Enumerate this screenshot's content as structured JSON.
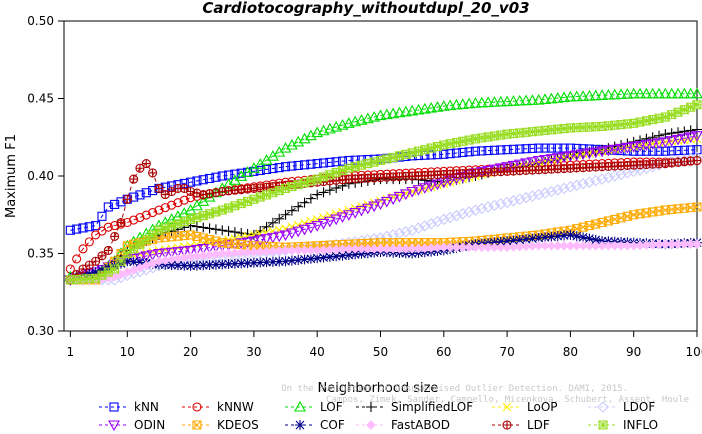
{
  "chart_data": {
    "type": "line",
    "title": "Cardiotocography_withoutdupl_20_v03",
    "xlabel": "Neighborhood size",
    "ylabel": "Maximum F1",
    "xlim": [
      0,
      100
    ],
    "ylim": [
      0.3,
      0.5
    ],
    "xticks": [
      1,
      10,
      20,
      30,
      40,
      50,
      60,
      70,
      80,
      90,
      100
    ],
    "yticks": [
      0.3,
      0.35,
      0.4,
      0.45,
      0.5
    ],
    "ytick_labels": [
      "0.30",
      "0.35",
      "0.40",
      "0.45",
      "0.50"
    ],
    "grid": false,
    "legend_position": "bottom",
    "watermark": "Campos, Zimek, Sander, Campello, Micenkova, Schubert, Assent, Houle: On the Evaluation of Unsupervised Outlier Detection. DAMI, 2015.",
    "watermark_lines": [
      "On the Evaluation of Unsupervised Outlier Detection. DAMI, 2015.",
      "Campos, Zimek, Sander, Campello, Micenkova, Schubert, Assent, Houle"
    ],
    "series": [
      {
        "name": "kNN",
        "color": "#0000ff",
        "marker": "square",
        "x": [
          1,
          5,
          7,
          10,
          15,
          20,
          25,
          30,
          35,
          40,
          45,
          50,
          55,
          60,
          65,
          70,
          75,
          80,
          85,
          90,
          95,
          100
        ],
        "y": [
          0.365,
          0.368,
          0.38,
          0.385,
          0.392,
          0.396,
          0.4,
          0.403,
          0.406,
          0.408,
          0.41,
          0.411,
          0.413,
          0.414,
          0.416,
          0.417,
          0.418,
          0.418,
          0.417,
          0.416,
          0.416,
          0.417
        ]
      },
      {
        "name": "kNNW",
        "color": "#dd0000",
        "marker": "circle",
        "x": [
          1,
          3,
          5,
          7,
          10,
          15,
          20,
          25,
          30,
          35,
          40,
          45,
          50,
          55,
          60,
          65,
          70,
          75,
          80,
          85,
          90,
          95,
          100
        ],
        "y": [
          0.34,
          0.353,
          0.362,
          0.367,
          0.37,
          0.378,
          0.386,
          0.39,
          0.393,
          0.396,
          0.398,
          0.4,
          0.401,
          0.402,
          0.403,
          0.404,
          0.405,
          0.406,
          0.407,
          0.408,
          0.409,
          0.409,
          0.41
        ]
      },
      {
        "name": "LOF",
        "color": "#00dd00",
        "marker": "triangle",
        "x": [
          1,
          5,
          8,
          10,
          15,
          20,
          25,
          30,
          35,
          40,
          45,
          50,
          55,
          60,
          65,
          70,
          75,
          80,
          85,
          90,
          95,
          100
        ],
        "y": [
          0.335,
          0.335,
          0.345,
          0.355,
          0.368,
          0.378,
          0.392,
          0.405,
          0.418,
          0.428,
          0.434,
          0.439,
          0.442,
          0.445,
          0.447,
          0.448,
          0.449,
          0.451,
          0.452,
          0.453,
          0.453,
          0.453
        ]
      },
      {
        "name": "SimplifiedLOF",
        "color": "#000000",
        "marker": "plus",
        "x": [
          1,
          5,
          8,
          10,
          15,
          20,
          25,
          30,
          35,
          40,
          45,
          50,
          55,
          60,
          65,
          70,
          75,
          80,
          85,
          90,
          95,
          100
        ],
        "y": [
          0.334,
          0.334,
          0.345,
          0.352,
          0.362,
          0.368,
          0.365,
          0.362,
          0.375,
          0.388,
          0.395,
          0.398,
          0.398,
          0.396,
          0.4,
          0.405,
          0.408,
          0.413,
          0.417,
          0.422,
          0.427,
          0.43
        ]
      },
      {
        "name": "LoOP",
        "color": "#ffee00",
        "marker": "x",
        "x": [
          1,
          5,
          8,
          10,
          15,
          20,
          25,
          30,
          35,
          40,
          45,
          50,
          55,
          60,
          65,
          70,
          75,
          80,
          85,
          90,
          95,
          100
        ],
        "y": [
          0.333,
          0.333,
          0.34,
          0.348,
          0.352,
          0.355,
          0.358,
          0.362,
          0.366,
          0.372,
          0.378,
          0.384,
          0.39,
          0.395,
          0.4,
          0.405,
          0.409,
          0.413,
          0.416,
          0.419,
          0.422,
          0.424
        ]
      },
      {
        "name": "LDOF",
        "color": "#ccccff",
        "marker": "diamond",
        "x": [
          1,
          5,
          8,
          10,
          15,
          20,
          25,
          30,
          35,
          40,
          45,
          50,
          55,
          60,
          65,
          70,
          75,
          80,
          85,
          90,
          95,
          100
        ],
        "y": [
          0.333,
          0.333,
          0.333,
          0.336,
          0.342,
          0.345,
          0.348,
          0.35,
          0.352,
          0.354,
          0.357,
          0.36,
          0.365,
          0.372,
          0.378,
          0.383,
          0.388,
          0.393,
          0.398,
          0.403,
          0.408,
          0.412
        ]
      },
      {
        "name": "ODIN",
        "color": "#9900ff",
        "marker": "triangle-down",
        "x": [
          1,
          5,
          8,
          10,
          15,
          20,
          25,
          30,
          35,
          40,
          45,
          50,
          55,
          60,
          65,
          70,
          75,
          80,
          85,
          90,
          95,
          100
        ],
        "y": [
          0.333,
          0.338,
          0.343,
          0.346,
          0.35,
          0.352,
          0.355,
          0.358,
          0.362,
          0.368,
          0.375,
          0.382,
          0.39,
          0.396,
          0.402,
          0.406,
          0.41,
          0.413,
          0.416,
          0.419,
          0.422,
          0.426
        ]
      },
      {
        "name": "KDEOS",
        "color": "#ffaa00",
        "marker": "square-x",
        "x": [
          1,
          5,
          8,
          10,
          15,
          20,
          25,
          30,
          35,
          40,
          45,
          50,
          55,
          60,
          65,
          70,
          75,
          80,
          85,
          90,
          95,
          100
        ],
        "y": [
          0.333,
          0.333,
          0.345,
          0.355,
          0.36,
          0.362,
          0.357,
          0.355,
          0.354,
          0.355,
          0.356,
          0.357,
          0.357,
          0.357,
          0.358,
          0.36,
          0.362,
          0.365,
          0.37,
          0.375,
          0.378,
          0.38
        ]
      },
      {
        "name": "COF",
        "color": "#000088",
        "marker": "asterisk",
        "x": [
          1,
          5,
          8,
          10,
          15,
          20,
          25,
          30,
          35,
          40,
          45,
          50,
          55,
          60,
          65,
          70,
          75,
          80,
          85,
          90,
          95,
          100
        ],
        "y": [
          0.333,
          0.338,
          0.342,
          0.345,
          0.343,
          0.342,
          0.343,
          0.344,
          0.345,
          0.347,
          0.349,
          0.351,
          0.35,
          0.352,
          0.356,
          0.358,
          0.36,
          0.362,
          0.358,
          0.357,
          0.356,
          0.357
        ]
      },
      {
        "name": "FastABOD",
        "color": "#ffbbff",
        "marker": "diamond-filled",
        "x": [
          1,
          5,
          8,
          10,
          15,
          20,
          25,
          30,
          35,
          40,
          45,
          50,
          55,
          60,
          65,
          70,
          75,
          80,
          85,
          90,
          95,
          100
        ],
        "y": [
          0.333,
          0.333,
          0.335,
          0.338,
          0.345,
          0.348,
          0.35,
          0.351,
          0.352,
          0.352,
          0.353,
          0.353,
          0.353,
          0.354,
          0.354,
          0.354,
          0.355,
          0.355,
          0.355,
          0.355,
          0.356,
          0.356
        ]
      },
      {
        "name": "LDF",
        "color": "#aa0000",
        "marker": "circle-plus",
        "x": [
          1,
          3,
          5,
          7,
          9,
          10,
          11,
          12,
          13,
          14,
          15,
          16,
          17,
          18,
          19,
          20,
          22,
          25,
          30,
          35,
          40,
          45,
          50,
          55,
          60,
          65,
          70,
          75,
          80,
          85,
          90,
          95,
          100
        ],
        "y": [
          0.333,
          0.34,
          0.345,
          0.352,
          0.37,
          0.385,
          0.398,
          0.405,
          0.408,
          0.402,
          0.392,
          0.388,
          0.39,
          0.392,
          0.392,
          0.39,
          0.388,
          0.39,
          0.392,
          0.394,
          0.396,
          0.398,
          0.399,
          0.4,
          0.401,
          0.402,
          0.403,
          0.404,
          0.405,
          0.406,
          0.407,
          0.408,
          0.41
        ]
      },
      {
        "name": "INFLO",
        "color": "#99dd22",
        "marker": "square-star",
        "x": [
          1,
          5,
          8,
          10,
          15,
          20,
          25,
          30,
          35,
          40,
          45,
          50,
          55,
          60,
          65,
          70,
          75,
          80,
          85,
          90,
          95,
          100
        ],
        "y": [
          0.333,
          0.334,
          0.34,
          0.35,
          0.365,
          0.372,
          0.378,
          0.385,
          0.392,
          0.398,
          0.405,
          0.41,
          0.415,
          0.42,
          0.424,
          0.427,
          0.429,
          0.431,
          0.432,
          0.434,
          0.438,
          0.446
        ]
      }
    ]
  }
}
